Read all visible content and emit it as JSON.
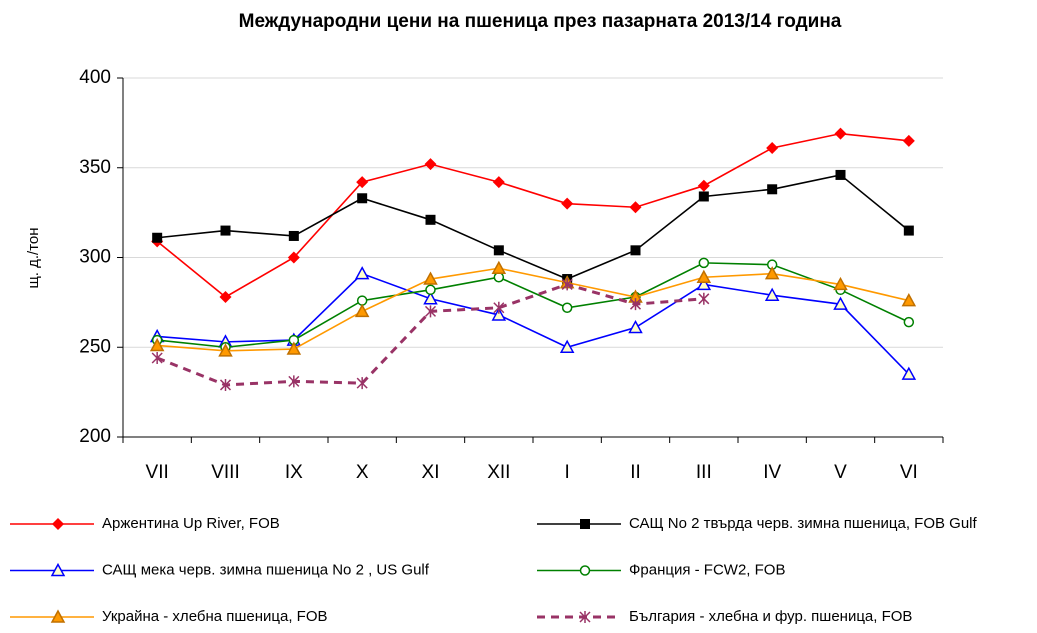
{
  "chart_data": {
    "type": "line",
    "title": "Международни цени на пшеница през пазарната 2013/14 година",
    "y_label": "щ. д./тон",
    "categories": [
      "VII",
      "VIII",
      "IX",
      "X",
      "XI",
      "XII",
      "I",
      "II",
      "III",
      "IV",
      "V",
      "VI"
    ],
    "ylim": [
      200,
      400
    ],
    "yticks": [
      200,
      250,
      300,
      350,
      400
    ],
    "grid": true,
    "series": [
      {
        "name": "Аржентина Up River, FOB",
        "color": "#ff0000",
        "marker": "diamond",
        "dash": false,
        "values": [
          309,
          278,
          300,
          342,
          352,
          342,
          330,
          328,
          340,
          361,
          369,
          365
        ]
      },
      {
        "name": "САЩ No 2 твърда черв. зимна пшеница, FOB Gulf",
        "color": "#000000",
        "marker": "square",
        "dash": false,
        "values": [
          311,
          315,
          312,
          333,
          321,
          304,
          288,
          304,
          334,
          338,
          346,
          315
        ]
      },
      {
        "name": "САЩ мека черв. зимна пшеница No 2 , US Gulf",
        "color": "#0000ff",
        "marker": "triangle-open",
        "dash": false,
        "values": [
          256,
          253,
          254,
          291,
          277,
          268,
          250,
          261,
          285,
          279,
          274,
          235
        ]
      },
      {
        "name": "Франция - FCW2, FOB",
        "color": "#008000",
        "marker": "circle-open",
        "dash": false,
        "values": [
          254,
          250,
          254,
          276,
          282,
          289,
          272,
          278,
          297,
          296,
          282,
          264
        ]
      },
      {
        "name": "Украйна - хлебна пшеница, FOB",
        "color": "#ff9900",
        "marker": "triangle",
        "dash": false,
        "values": [
          251,
          248,
          249,
          270,
          288,
          294,
          286,
          278,
          289,
          291,
          285,
          276
        ]
      },
      {
        "name": "България - хлебна и фур. пшеница, FOB",
        "color": "#993366",
        "marker": "asterisk",
        "dash": true,
        "values": [
          244,
          229,
          231,
          230,
          270,
          272,
          285,
          274,
          277,
          null,
          null,
          null
        ]
      }
    ]
  }
}
